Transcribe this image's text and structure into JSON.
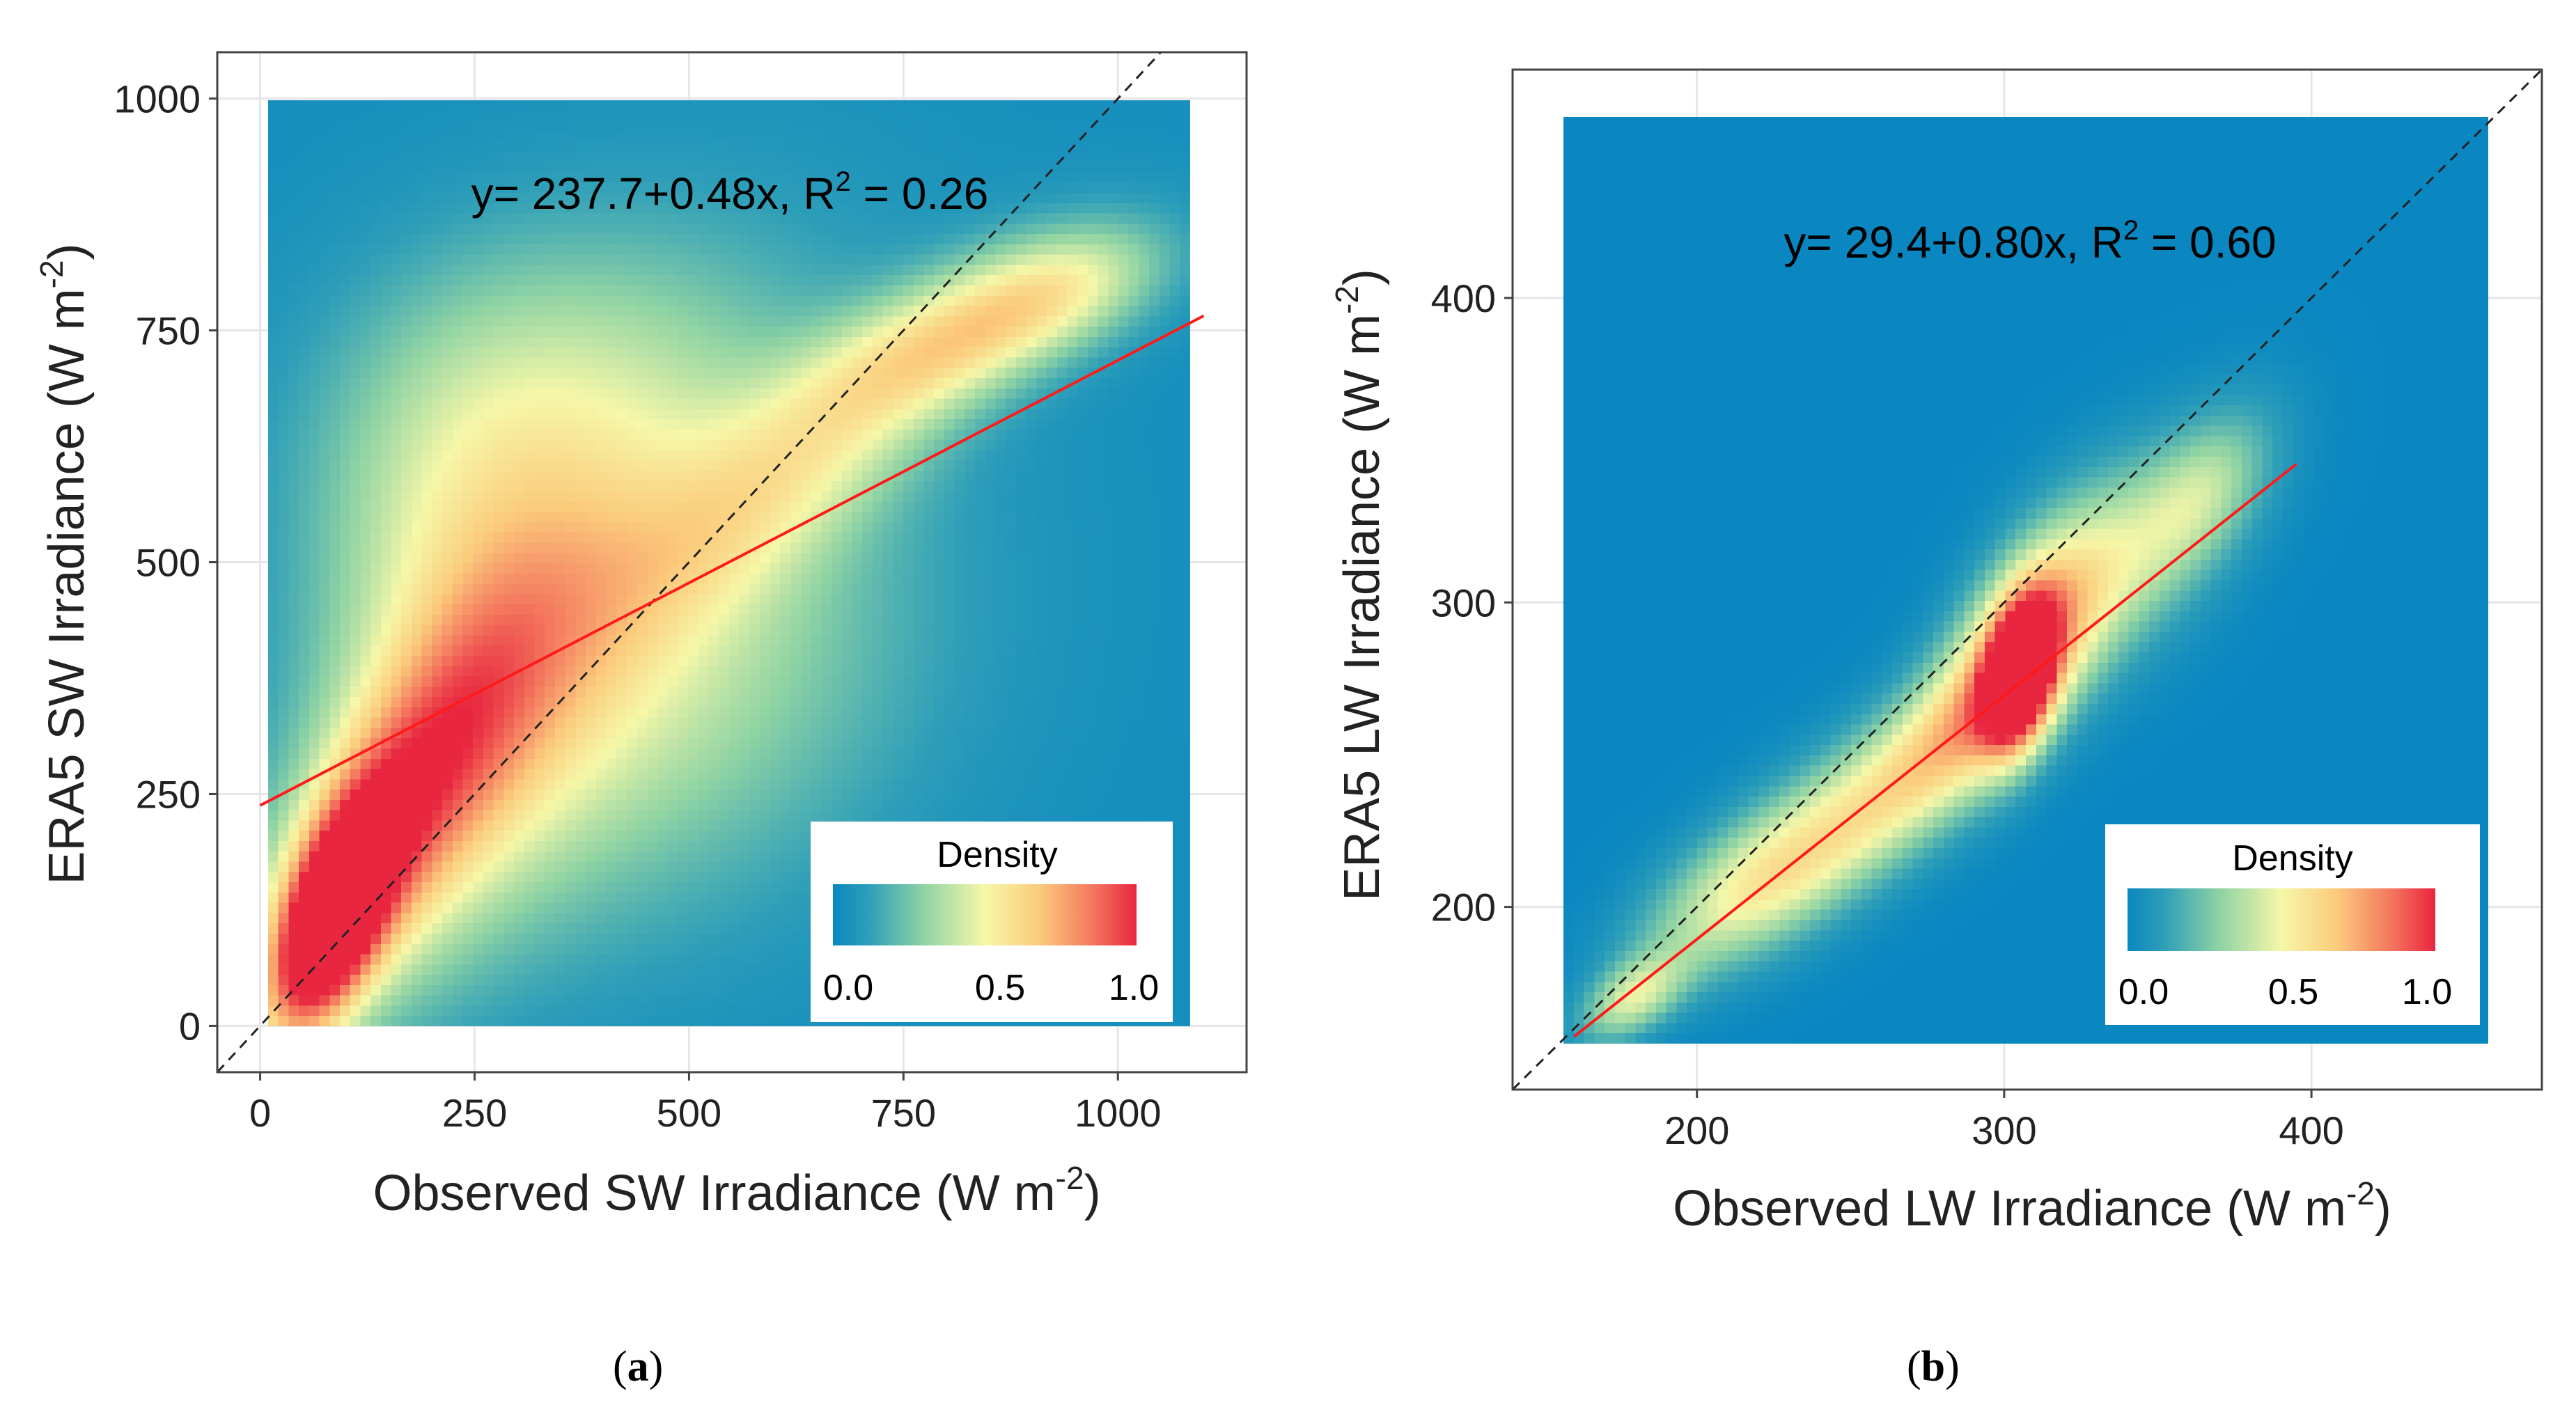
{
  "chart_data": [
    {
      "panel_label": "(a)",
      "panel_letter": "a",
      "type": "heatmap",
      "title": "",
      "xlabel": "Observed SW Irradiance (W m",
      "xlabel_sup": "-2",
      "xlabel_suffix": ")",
      "ylabel": "ERA5 SW Irradiance (W m",
      "ylabel_sup": "-2",
      "ylabel_suffix": ")",
      "xlim": [
        -50,
        1150
      ],
      "ylim": [
        -50,
        1050
      ],
      "x_ticks": [
        0,
        250,
        500,
        750,
        1000
      ],
      "y_ticks": [
        0,
        250,
        500,
        750,
        1000
      ],
      "data_extent": {
        "x": [
          0,
          1100
        ],
        "y": [
          0,
          1000
        ]
      },
      "equation": "y= 237.7+0.48x, R",
      "equation_sup": "2",
      "equation_suffix": " = 0.26",
      "regression": {
        "intercept": 237.7,
        "slope": 0.48,
        "x_range": [
          0,
          1100
        ],
        "r2": 0.26
      },
      "one_to_one_line": true,
      "legend": {
        "title": "Density",
        "ticks": [
          "0.0",
          "0.5",
          "1.0"
        ],
        "placement": "bottom-right"
      },
      "density_blobs": [
        {
          "x": 75,
          "y": 115,
          "sx": 50,
          "sy": 85,
          "rho": 0.55,
          "w": 1.0
        },
        {
          "x": 140,
          "y": 210,
          "sx": 110,
          "sy": 150,
          "rho": 0.7,
          "w": 0.5
        },
        {
          "x": 250,
          "y": 330,
          "sx": 150,
          "sy": 200,
          "rho": 0.6,
          "w": 0.34
        },
        {
          "x": 400,
          "y": 460,
          "sx": 200,
          "sy": 230,
          "rho": 0.5,
          "w": 0.26
        },
        {
          "x": 650,
          "y": 620,
          "sx": 160,
          "sy": 120,
          "rho": 0.8,
          "w": 0.3
        },
        {
          "x": 820,
          "y": 740,
          "sx": 120,
          "sy": 60,
          "rho": 0.6,
          "w": 0.36
        },
        {
          "x": 950,
          "y": 800,
          "sx": 90,
          "sy": 50,
          "rho": 0.4,
          "w": 0.3
        },
        {
          "x": 300,
          "y": 700,
          "sx": 180,
          "sy": 130,
          "rho": 0.2,
          "w": 0.2
        },
        {
          "x": 550,
          "y": 350,
          "sx": 200,
          "sy": 180,
          "rho": 0.3,
          "w": 0.18
        },
        {
          "x": 200,
          "y": 550,
          "sx": 120,
          "sy": 150,
          "rho": 0.3,
          "w": 0.2
        }
      ],
      "density_bg": 0.04
    },
    {
      "panel_label": "(b)",
      "panel_letter": "b",
      "type": "heatmap",
      "title": "",
      "xlabel": "Observed LW Irradiance (W m",
      "xlabel_sup": "-2",
      "xlabel_suffix": ")",
      "ylabel": "ERA5 LW Irradiance (W m",
      "ylabel_sup": "-2",
      "ylabel_suffix": ")",
      "xlim": [
        140,
        475
      ],
      "ylim": [
        140,
        475
      ],
      "x_ticks": [
        200,
        300,
        400
      ],
      "y_ticks": [
        200,
        300,
        400
      ],
      "data_extent": {
        "x": [
          155,
          465
        ],
        "y": [
          155,
          465
        ]
      },
      "equation": "y= 29.4+0.80x, R",
      "equation_sup": "2",
      "equation_suffix": " = 0.60",
      "regression": {
        "intercept": 29.4,
        "slope": 0.8,
        "x_range": [
          160,
          395
        ],
        "r2": 0.6
      },
      "one_to_one_line": true,
      "legend": {
        "title": "Density",
        "ticks": [
          "0.0",
          "0.5",
          "1.0"
        ],
        "placement": "bottom-right"
      },
      "density_blobs": [
        {
          "x": 308,
          "y": 278,
          "sx": 8,
          "sy": 17,
          "rho": 0.3,
          "w": 1.0
        },
        {
          "x": 312,
          "y": 295,
          "sx": 20,
          "sy": 28,
          "rho": 0.6,
          "w": 0.55
        },
        {
          "x": 290,
          "y": 262,
          "sx": 25,
          "sy": 25,
          "rho": 0.7,
          "w": 0.42
        },
        {
          "x": 250,
          "y": 230,
          "sx": 30,
          "sy": 25,
          "rho": 0.7,
          "w": 0.38
        },
        {
          "x": 215,
          "y": 205,
          "sx": 25,
          "sy": 20,
          "rho": 0.6,
          "w": 0.36
        },
        {
          "x": 178,
          "y": 170,
          "sx": 12,
          "sy": 10,
          "rho": 0.5,
          "w": 0.4
        },
        {
          "x": 350,
          "y": 320,
          "sx": 25,
          "sy": 28,
          "rho": 0.6,
          "w": 0.3
        },
        {
          "x": 370,
          "y": 340,
          "sx": 15,
          "sy": 18,
          "rho": 0.5,
          "w": 0.22
        }
      ],
      "density_bg": 0.0
    }
  ]
}
